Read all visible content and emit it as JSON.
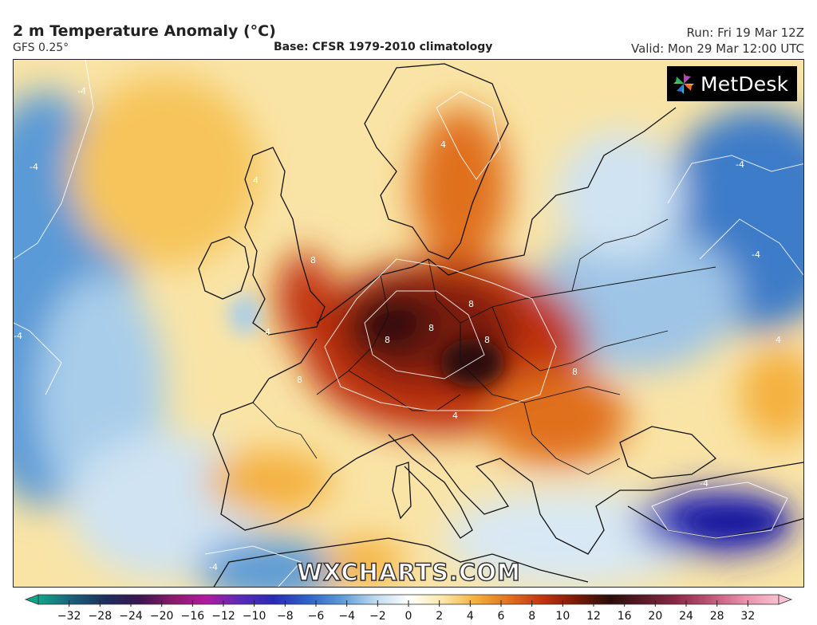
{
  "header": {
    "title": "2 m Temperature Anomaly (°C)",
    "model": "GFS 0.25°",
    "base": "Base: CFSR 1979-2010 climatology",
    "run": "Run: Fri 19 Mar 12Z",
    "valid": "Valid: Mon 29 Mar 12:00 UTC"
  },
  "logo": {
    "text": "MetDesk",
    "icon": "pinwheel-icon"
  },
  "watermark": "WXCHARTS.COM",
  "legend": {
    "ticks": [
      "−32",
      "−28",
      "−24",
      "−20",
      "−16",
      "−12",
      "−10",
      "−8",
      "−6",
      "−4",
      "−2",
      "0",
      "2",
      "4",
      "6",
      "8",
      "10",
      "12",
      "16",
      "20",
      "24",
      "28",
      "32"
    ],
    "colors": [
      "#10a58a",
      "#1a5f7a",
      "#1c2e5e",
      "#3a1550",
      "#8a1a6a",
      "#b01aa0",
      "#5a2ab8",
      "#2a2ab8",
      "#2e62c8",
      "#5a9ad6",
      "#bcd9ee",
      "#ffffff",
      "#fbe8a8",
      "#f4b03c",
      "#e0701e",
      "#c0320f",
      "#7a1a08",
      "#2a0d0a",
      "#5a1a28",
      "#8c2a48",
      "#c05878",
      "#e890a8",
      "#f8c0d0"
    ]
  },
  "map": {
    "contour_labels": [
      "-4",
      "-4",
      "-4",
      "-4",
      "-4",
      "-4",
      "-4",
      "4",
      "4",
      "4",
      "4",
      "4",
      "8",
      "8",
      "8",
      "8",
      "8",
      "8",
      "8"
    ]
  }
}
